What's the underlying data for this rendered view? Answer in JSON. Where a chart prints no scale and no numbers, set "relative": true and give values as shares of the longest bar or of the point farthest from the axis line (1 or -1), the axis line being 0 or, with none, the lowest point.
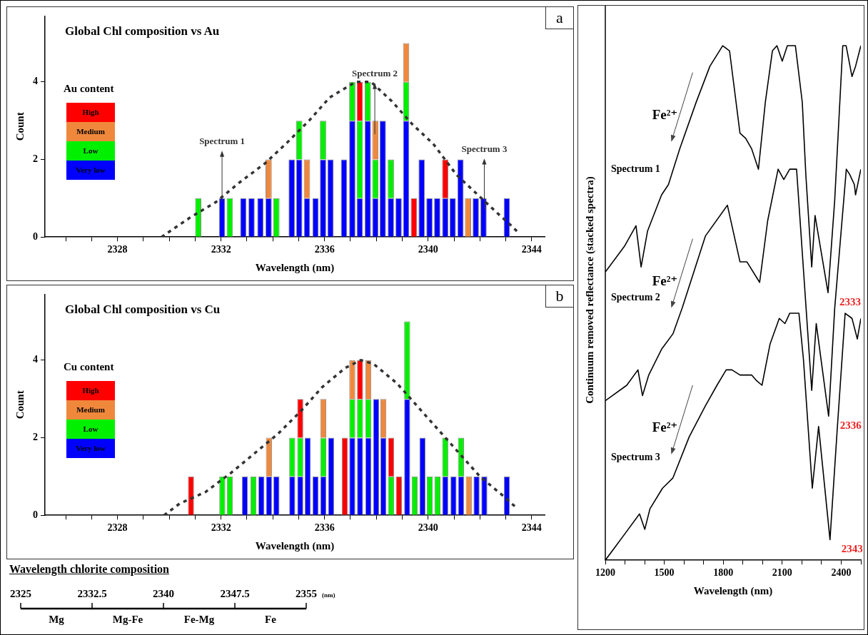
{
  "chart_data": [
    {
      "type": "bar",
      "title": "Global Chl composition vs Au",
      "xlabel": "Wavelength (nm)",
      "ylabel": "Count",
      "legend_title": "Au content",
      "legend": "left",
      "stacked": true,
      "x": [
        2331.12,
        2332.04,
        2332.34,
        2332.86,
        2333.18,
        2333.52,
        2333.84,
        2334.14,
        2334.73,
        2335.02,
        2335.32,
        2335.65,
        2335.94,
        2336.23,
        2336.75,
        2337.07,
        2337.36,
        2337.67,
        2337.96,
        2338.25,
        2338.56,
        2338.86,
        2339.15,
        2339.45,
        2339.75,
        2340.05,
        2340.35,
        2340.66,
        2340.95,
        2341.25,
        2341.54,
        2341.84,
        2342.14,
        2343.04
      ],
      "xlim": [
        2325.2,
        2344.5
      ],
      "xticks": [
        {
          "value": 2326,
          "label": null
        },
        {
          "value": 2327,
          "label": null
        },
        2328,
        {
          "value": 2329,
          "label": null
        },
        {
          "value": 2330,
          "label": null
        },
        {
          "value": 2331,
          "label": null
        },
        2332,
        {
          "value": 2333,
          "label": null
        },
        {
          "value": 2334,
          "label": null
        },
        {
          "value": 2335,
          "label": null
        },
        2336,
        {
          "value": 2337,
          "label": null
        },
        {
          "value": 2338,
          "label": null
        },
        {
          "value": 2339,
          "label": null
        },
        2340,
        {
          "value": 2341,
          "label": null
        },
        {
          "value": 2342,
          "label": null
        },
        {
          "value": 2343,
          "label": null
        },
        2344
      ],
      "ylim": [
        0,
        5.7
      ],
      "yticks": [
        0,
        2,
        4
      ],
      "annotations": [
        "a",
        {
          "text": "Spectrum 1",
          "x": 2332.04,
          "y": 0.9
        },
        {
          "text": "Spectrum 2",
          "x": 2337.94,
          "y": 2.65
        },
        {
          "text": "Spectrum 3",
          "x": 2342.17,
          "y": 0.7
        }
      ],
      "series": [
        {
          "name": "Very low",
          "color": "#0000ff",
          "values": [
            null,
            1,
            null,
            1,
            1,
            1,
            1,
            null,
            2,
            2,
            1,
            1,
            2,
            2,
            2,
            3,
            1,
            3,
            1,
            3,
            1,
            1,
            3,
            null,
            2,
            1,
            1,
            1,
            1,
            2,
            null,
            1,
            1,
            1
          ]
        },
        {
          "name": "Low",
          "color": "#00f000",
          "values": [
            1,
            null,
            1,
            null,
            null,
            null,
            null,
            1,
            null,
            1,
            null,
            null,
            1,
            null,
            null,
            1,
            2,
            1,
            1,
            null,
            1,
            null,
            1,
            null,
            null,
            null,
            null,
            null,
            null,
            null,
            null,
            null,
            null,
            null
          ]
        },
        {
          "name": "Medium",
          "color": "#f0883c",
          "values": [
            null,
            null,
            null,
            null,
            null,
            null,
            1,
            null,
            null,
            null,
            1,
            null,
            null,
            null,
            null,
            null,
            null,
            null,
            1,
            null,
            null,
            null,
            1,
            null,
            null,
            null,
            null,
            null,
            null,
            null,
            1,
            null,
            null,
            null
          ]
        },
        {
          "name": "High",
          "color": "#ff0000",
          "values": [
            null,
            null,
            null,
            null,
            null,
            null,
            null,
            null,
            null,
            null,
            null,
            null,
            null,
            null,
            null,
            null,
            1,
            null,
            null,
            null,
            null,
            null,
            null,
            1,
            null,
            null,
            null,
            1,
            null,
            null,
            null,
            null,
            null,
            null
          ]
        },
        {
          "type": "line",
          "color": "#333333",
          "line_style": "dashed",
          "marker": "none",
          "x": [
            2329.7,
            2330.8,
            2331.8,
            2332.7,
            2333.7,
            2334.5,
            2335.4,
            2336.2,
            2337.2,
            2337.8,
            2338.6,
            2339.4,
            2340.2,
            2341.1,
            2341.9,
            2342.7,
            2343.2,
            2343.5
          ],
          "values": [
            0,
            0.5,
            0.9,
            1.4,
            1.9,
            2.4,
            3.0,
            3.6,
            4.0,
            4.0,
            3.5,
            2.9,
            2.4,
            1.6,
            1.1,
            0.6,
            0.3,
            0.1
          ]
        }
      ]
    },
    {
      "type": "bar",
      "title": "Global Chl composition vs Cu",
      "xlabel": "Wavelength (nm)",
      "ylabel": "Count",
      "legend_title": "Cu content",
      "legend": "left",
      "stacked": true,
      "x": [
        2330.84,
        2332.05,
        2332.34,
        2332.92,
        2333.25,
        2333.56,
        2333.85,
        2334.14,
        2334.75,
        2335.06,
        2335.35,
        2335.65,
        2335.95,
        2336.25,
        2336.78,
        2337.07,
        2337.37,
        2337.69,
        2337.99,
        2338.27,
        2338.57,
        2338.87,
        2339.19,
        2339.48,
        2339.78,
        2340.06,
        2340.36,
        2340.66,
        2340.98,
        2341.27,
        2341.57,
        2341.87,
        2342.17,
        2343.04
      ],
      "xlim": [
        2325.2,
        2344.5
      ],
      "xticks": [
        {
          "value": 2326,
          "label": null
        },
        {
          "value": 2327,
          "label": null
        },
        2328,
        {
          "value": 2329,
          "label": null
        },
        {
          "value": 2330,
          "label": null
        },
        {
          "value": 2331,
          "label": null
        },
        2332,
        {
          "value": 2333,
          "label": null
        },
        {
          "value": 2334,
          "label": null
        },
        {
          "value": 2335,
          "label": null
        },
        2336,
        {
          "value": 2337,
          "label": null
        },
        {
          "value": 2338,
          "label": null
        },
        {
          "value": 2339,
          "label": null
        },
        2340,
        {
          "value": 2341,
          "label": null
        },
        {
          "value": 2342,
          "label": null
        },
        {
          "value": 2343,
          "label": null
        },
        2344
      ],
      "ylim": [
        0,
        5.7
      ],
      "yticks": [
        0,
        2,
        4
      ],
      "annotations": [
        "b"
      ],
      "series": [
        {
          "name": "Very low",
          "color": "#0000ff",
          "values": [
            null,
            null,
            null,
            1,
            null,
            1,
            1,
            1,
            1,
            1,
            2,
            1,
            1,
            2,
            null,
            2,
            2,
            2,
            3,
            2,
            null,
            null,
            3,
            null,
            2,
            null,
            null,
            1,
            1,
            1,
            null,
            1,
            1,
            1
          ]
        },
        {
          "name": "Low",
          "color": "#00f000",
          "values": [
            null,
            1,
            1,
            null,
            1,
            null,
            null,
            null,
            1,
            1,
            null,
            null,
            1,
            null,
            null,
            1,
            1,
            1,
            null,
            null,
            1,
            null,
            2,
            1,
            null,
            1,
            1,
            1,
            null,
            1,
            null,
            null,
            null,
            null
          ]
        },
        {
          "name": "Medium",
          "color": "#f0883c",
          "values": [
            null,
            null,
            null,
            null,
            null,
            null,
            1,
            null,
            null,
            null,
            null,
            null,
            1,
            null,
            null,
            1,
            null,
            1,
            null,
            1,
            null,
            null,
            null,
            null,
            null,
            null,
            null,
            null,
            null,
            null,
            1,
            null,
            null,
            null
          ]
        },
        {
          "name": "High",
          "color": "#ff0000",
          "values": [
            1,
            null,
            null,
            null,
            null,
            null,
            null,
            null,
            null,
            1,
            null,
            null,
            null,
            null,
            2,
            null,
            1,
            null,
            null,
            null,
            1,
            1,
            null,
            null,
            null,
            null,
            null,
            null,
            null,
            null,
            null,
            null,
            null,
            null
          ]
        },
        {
          "type": "line",
          "color": "#333333",
          "line_style": "dashed",
          "marker": "none",
          "x": [
            2329.8,
            2330.4,
            2331.4,
            2332.4,
            2333.3,
            2334.2,
            2335.1,
            2335.9,
            2336.8,
            2337.4,
            2337.9,
            2338.8,
            2339.6,
            2340.4,
            2341.2,
            2342.0,
            2342.9,
            2343.4
          ],
          "values": [
            0,
            0.3,
            0.6,
            1.1,
            1.6,
            2.1,
            2.7,
            3.3,
            3.8,
            4.0,
            3.9,
            3.4,
            2.8,
            2.2,
            1.6,
            1.0,
            0.5,
            0.2
          ]
        }
      ]
    },
    {
      "type": "line",
      "relative": true,
      "xlabel": "Wavelength (nm)",
      "ylabel": "Continuum removed reflectance (stacked spectra)",
      "xlim": [
        1200,
        2500
      ],
      "xticks": [
        1200,
        {
          "value": 1300,
          "label": null
        },
        {
          "value": 1400,
          "label": null
        },
        1500,
        {
          "value": 1600,
          "label": null
        },
        {
          "value": 1700,
          "label": null
        },
        1800,
        {
          "value": 1900,
          "label": null
        },
        {
          "value": 2000,
          "label": null
        },
        2100,
        {
          "value": 2200,
          "label": null
        },
        {
          "value": 2300,
          "label": null
        },
        2400,
        {
          "value": 2500,
          "label": null
        }
      ],
      "annotations": [
        "Fe²⁺",
        "Fe²⁺",
        "Fe²⁺",
        {
          "text": "2333",
          "x": 2333,
          "y": 0.52
        },
        {
          "text": "2336",
          "x": 2336,
          "y": 0.28
        },
        {
          "text": "2343",
          "x": 2343,
          "y": 0.04
        }
      ],
      "series": [
        {
          "name": "Spectrum 1",
          "color": "#000000",
          "x": [
            1200,
            1297,
            1356,
            1382,
            1415,
            1486,
            1521,
            1579,
            1662,
            1732,
            1797,
            1832,
            1885,
            1914,
            1944,
            1979,
            2014,
            2050,
            2073,
            2100,
            2126,
            2167,
            2202,
            2220,
            2250,
            2267,
            2333,
            2367,
            2408,
            2425,
            2455,
            2473,
            2500
          ],
          "values": [
            0.56,
            0.61,
            0.65,
            0.57,
            0.64,
            0.71,
            0.73,
            0.8,
            0.89,
            0.96,
            1.0,
            0.99,
            0.83,
            0.82,
            0.8,
            0.76,
            0.89,
            0.99,
            1.0,
            0.97,
            1.0,
            1.0,
            0.89,
            0.75,
            0.57,
            0.67,
            0.52,
            0.7,
            1.0,
            1.0,
            0.94,
            0.96,
            1.0
          ]
        },
        {
          "name": "Spectrum 2",
          "color": "#000000",
          "x": [
            1200,
            1309,
            1366,
            1389,
            1421,
            1486,
            1544,
            1591,
            1709,
            1821,
            1885,
            1920,
            1985,
            2026,
            2079,
            2108,
            2138,
            2173,
            2250,
            2273,
            2336,
            2367,
            2426,
            2443,
            2467,
            2473,
            2500
          ],
          "values": [
            0.31,
            0.34,
            0.37,
            0.32,
            0.36,
            0.41,
            0.44,
            0.49,
            0.63,
            0.69,
            0.58,
            0.58,
            0.54,
            0.66,
            0.76,
            0.74,
            0.76,
            0.76,
            0.33,
            0.46,
            0.28,
            0.49,
            0.76,
            0.75,
            0.73,
            0.71,
            0.76
          ]
        },
        {
          "name": "Spectrum 3",
          "color": "#000000",
          "x": [
            1200,
            1297,
            1374,
            1401,
            1427,
            1491,
            1544,
            1627,
            1709,
            1768,
            1815,
            1844,
            1885,
            1944,
            1967,
            1997,
            2038,
            2085,
            2114,
            2138,
            2185,
            2208,
            2253,
            2285,
            2343,
            2379,
            2420,
            2455,
            2482,
            2500
          ],
          "values": [
            0,
            0.05,
            0.09,
            0.06,
            0.1,
            0.14,
            0.16,
            0.24,
            0.3,
            0.34,
            0.37,
            0.37,
            0.36,
            0.36,
            0.35,
            0.34,
            0.42,
            0.47,
            0.46,
            0.48,
            0.48,
            0.39,
            0.14,
            0.26,
            0.04,
            0.25,
            0.48,
            0.47,
            0.43,
            0.47
          ]
        }
      ]
    },
    {
      "type": "bar",
      "orientation": "horizontal",
      "title": "Wavelength chlorite composition",
      "xlabel": "(nm)",
      "xlim": [
        2325,
        2355
      ],
      "xticks": [
        2325,
        2332.5,
        2340,
        2347.5,
        2355
      ],
      "categories": [
        null
      ],
      "series": [
        {
          "name": "Mg",
          "color": "#000000",
          "base": [
            2325
          ],
          "values": [
            7.5
          ]
        },
        {
          "name": "Mg-Fe",
          "color": "#000000",
          "base": [
            2332.5
          ],
          "values": [
            7.5
          ]
        },
        {
          "name": "Fe-Mg",
          "color": "#000000",
          "base": [
            2340
          ],
          "values": [
            7.5
          ]
        },
        {
          "name": "Fe",
          "color": "#000000",
          "base": [
            2347.5
          ],
          "values": [
            7.5
          ]
        }
      ]
    }
  ]
}
